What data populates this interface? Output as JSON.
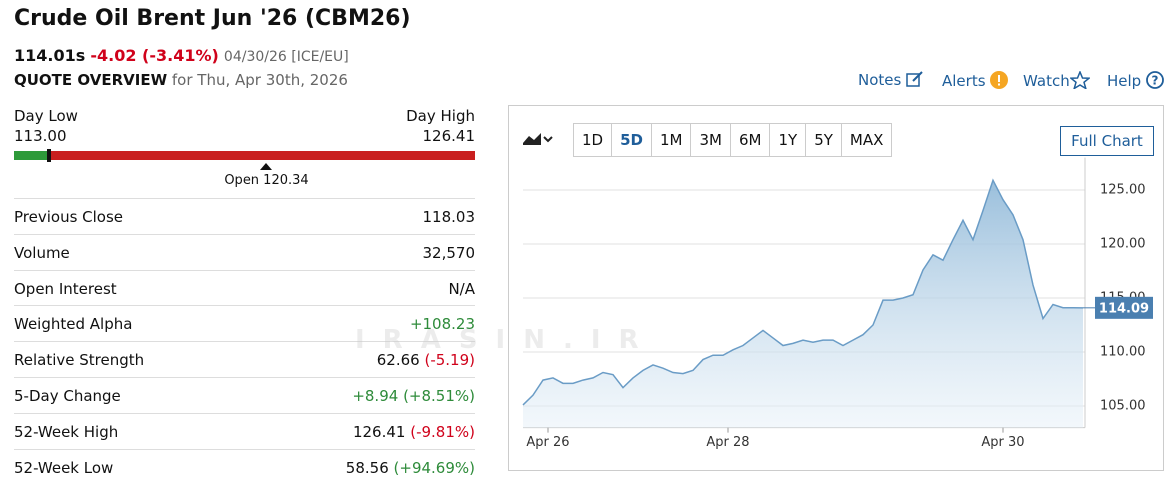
{
  "header": {
    "title": "Crude Oil Brent Jun '26 (CBM26)",
    "price": "114.01s",
    "change": "-4.02 (-3.41%)",
    "quote_date": "04/30/26 [ICE/EU]",
    "overview_label": "QUOTE OVERVIEW",
    "overview_date": "for Thu, Apr 30th, 2026"
  },
  "nav": [
    "Notes",
    "Alerts",
    "Watch",
    "Help"
  ],
  "day_range": {
    "low_label": "Day Low",
    "low": "113.00",
    "high_label": "Day High",
    "high": "126.41",
    "open": "Open 120.34"
  },
  "stats": [
    {
      "label": "Previous Close",
      "value": "118.03"
    },
    {
      "label": "Volume",
      "value": "32,570"
    },
    {
      "label": "Open Interest",
      "value": "N/A"
    },
    {
      "label": "Weighted Alpha",
      "value": "+108.23"
    },
    {
      "label": "Relative Strength",
      "value": "62.66",
      "change": "(-5.19)"
    },
    {
      "label": "5-Day Change",
      "value": "+8.94",
      "change": "(+8.51%)"
    },
    {
      "label": "52-Week High",
      "value": "126.41",
      "change": "(-9.81%)"
    },
    {
      "label": "52-Week Low",
      "value": "58.56",
      "change": "(+94.69%)"
    }
  ],
  "toolbar": {
    "periods": [
      "1D",
      "5D",
      "1M",
      "3M",
      "6M",
      "1Y",
      "5Y",
      "MAX"
    ],
    "active": "5D",
    "full_chart": "Full Chart"
  },
  "watermark": "IRASIN.IR",
  "chart_data": {
    "type": "line",
    "color": "#6a9cc6",
    "values": [
      105.1,
      106.0,
      107.4,
      107.6,
      107.1,
      107.1,
      107.4,
      107.6,
      108.1,
      107.9,
      106.7,
      107.6,
      108.3,
      108.8,
      108.5,
      108.1,
      108.0,
      108.3,
      109.3,
      109.7,
      109.7,
      110.2,
      110.6,
      111.3,
      112.0,
      111.3,
      110.6,
      110.8,
      111.1,
      110.9,
      111.1,
      111.1,
      110.6,
      111.1,
      111.6,
      112.5,
      114.8,
      114.8,
      115.0,
      115.3,
      117.6,
      119.0,
      118.5,
      120.4,
      122.2,
      120.4,
      123.1,
      125.9,
      124.1,
      122.7,
      120.4,
      116.2,
      113.1,
      114.4,
      114.1,
      114.1,
      114.09
    ],
    "last_label": "114.09",
    "xlim": [
      0,
      56
    ],
    "xticks": [
      {
        "value": 2.5,
        "label": "Apr 26"
      },
      {
        "value": 20.5,
        "label": "Apr 28"
      },
      {
        "value": 48,
        "label": "Apr 30"
      }
    ],
    "ylim": [
      103,
      128
    ],
    "yticks": [
      {
        "value": 105,
        "label": "105.00"
      },
      {
        "value": 110,
        "label": "110.00"
      },
      {
        "value": 115,
        "label": "115.00"
      },
      {
        "value": 120,
        "label": "120.00"
      },
      {
        "value": 125,
        "label": "125.00"
      }
    ],
    "grid": true
  }
}
